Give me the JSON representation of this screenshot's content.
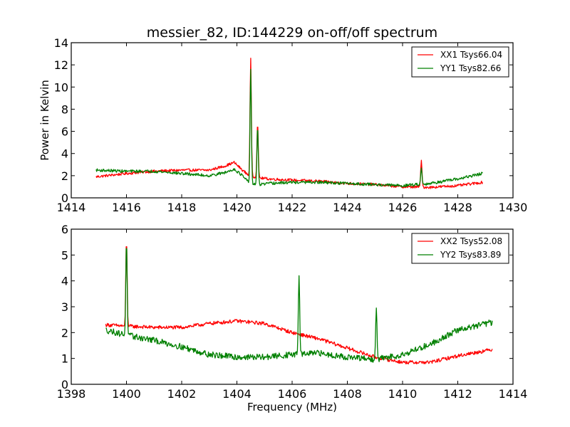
{
  "chart_data": [
    {
      "type": "line",
      "title": "messier_82, ID:144229 on-off/off spectrum",
      "xlabel": "",
      "ylabel": "Power in Kelvin",
      "xlim": [
        1414,
        1430
      ],
      "ylim": [
        0,
        14
      ],
      "xticks": [
        "1414",
        "1416",
        "1418",
        "1420",
        "1422",
        "1424",
        "1426",
        "1428",
        "1430"
      ],
      "yticks": [
        "0",
        "2",
        "4",
        "6",
        "8",
        "10",
        "12",
        "14"
      ],
      "grid": false,
      "legend_position": "top-right",
      "x_range": [
        1414.9,
        1428.9
      ],
      "series": [
        {
          "name": "XX1 Tsys66.04",
          "color": "#ff0000",
          "baseline": [
            [
              1414.9,
              1.9
            ],
            [
              1416,
              2.2
            ],
            [
              1417,
              2.4
            ],
            [
              1418,
              2.5
            ],
            [
              1419,
              2.5
            ],
            [
              1419.6,
              2.9
            ],
            [
              1419.9,
              3.2
            ],
            [
              1420.2,
              2.5
            ],
            [
              1420.45,
              2.0
            ],
            [
              1420.8,
              1.8
            ],
            [
              1421.2,
              1.7
            ],
            [
              1422,
              1.6
            ],
            [
              1423,
              1.5
            ],
            [
              1424,
              1.3
            ],
            [
              1425,
              1.2
            ],
            [
              1426,
              1.0
            ],
            [
              1427,
              0.95
            ],
            [
              1428,
              1.1
            ],
            [
              1428.9,
              1.4
            ]
          ],
          "spikes": [
            [
              1420.5,
              12.6
            ],
            [
              1420.75,
              6.8
            ],
            [
              1426.68,
              3.4
            ]
          ],
          "noise": 0.12
        },
        {
          "name": "YY1 Tsys82.66",
          "color": "#008000",
          "baseline": [
            [
              1414.9,
              2.5
            ],
            [
              1416,
              2.4
            ],
            [
              1417,
              2.4
            ],
            [
              1418,
              2.2
            ],
            [
              1419,
              2.0
            ],
            [
              1419.6,
              2.3
            ],
            [
              1419.9,
              2.6
            ],
            [
              1420.2,
              2.0
            ],
            [
              1420.45,
              1.3
            ],
            [
              1420.8,
              1.2
            ],
            [
              1421.2,
              1.3
            ],
            [
              1422,
              1.4
            ],
            [
              1423,
              1.4
            ],
            [
              1424,
              1.3
            ],
            [
              1425,
              1.2
            ],
            [
              1426,
              1.1
            ],
            [
              1427,
              1.3
            ],
            [
              1428,
              1.7
            ],
            [
              1428.9,
              2.2
            ]
          ],
          "spikes": [
            [
              1420.5,
              11.6
            ],
            [
              1420.75,
              6.5
            ],
            [
              1426.68,
              2.7
            ]
          ],
          "noise": 0.13
        }
      ]
    },
    {
      "type": "line",
      "title": "",
      "xlabel": "Frequency (MHz)",
      "ylabel": "",
      "xlim": [
        1398,
        1414
      ],
      "ylim": [
        0,
        6
      ],
      "xticks": [
        "1398",
        "1400",
        "1402",
        "1404",
        "1406",
        "1408",
        "1410",
        "1412",
        "1414"
      ],
      "yticks": [
        "0",
        "1",
        "2",
        "3",
        "4",
        "5",
        "6"
      ],
      "grid": false,
      "legend_position": "top-right",
      "x_range": [
        1399.25,
        1413.25
      ],
      "series": [
        {
          "name": "XX2 Tsys52.08",
          "color": "#ff0000",
          "baseline": [
            [
              1399.25,
              2.3
            ],
            [
              1400,
              2.25
            ],
            [
              1401,
              2.2
            ],
            [
              1402,
              2.2
            ],
            [
              1403,
              2.35
            ],
            [
              1404,
              2.45
            ],
            [
              1405,
              2.35
            ],
            [
              1406,
              2.0
            ],
            [
              1407,
              1.75
            ],
            [
              1408,
              1.4
            ],
            [
              1409,
              1.05
            ],
            [
              1410,
              0.85
            ],
            [
              1411,
              0.85
            ],
            [
              1412,
              1.1
            ],
            [
              1413.25,
              1.35
            ]
          ],
          "spikes": [
            [
              1400.0,
              5.6
            ]
          ],
          "noise": 0.07
        },
        {
          "name": "YY2 Tsys83.89",
          "color": "#008000",
          "baseline": [
            [
              1399.25,
              2.1
            ],
            [
              1400,
              1.9
            ],
            [
              1401,
              1.7
            ],
            [
              1402,
              1.45
            ],
            [
              1403,
              1.15
            ],
            [
              1404,
              1.05
            ],
            [
              1405,
              1.05
            ],
            [
              1406,
              1.15
            ],
            [
              1407,
              1.2
            ],
            [
              1408,
              1.05
            ],
            [
              1409,
              0.95
            ],
            [
              1410,
              1.15
            ],
            [
              1411,
              1.55
            ],
            [
              1412,
              2.1
            ],
            [
              1413.25,
              2.4
            ]
          ],
          "spikes": [
            [
              1400.0,
              5.55
            ],
            [
              1406.25,
              4.2
            ],
            [
              1409.05,
              2.95
            ]
          ],
          "noise": 0.12
        }
      ]
    }
  ]
}
